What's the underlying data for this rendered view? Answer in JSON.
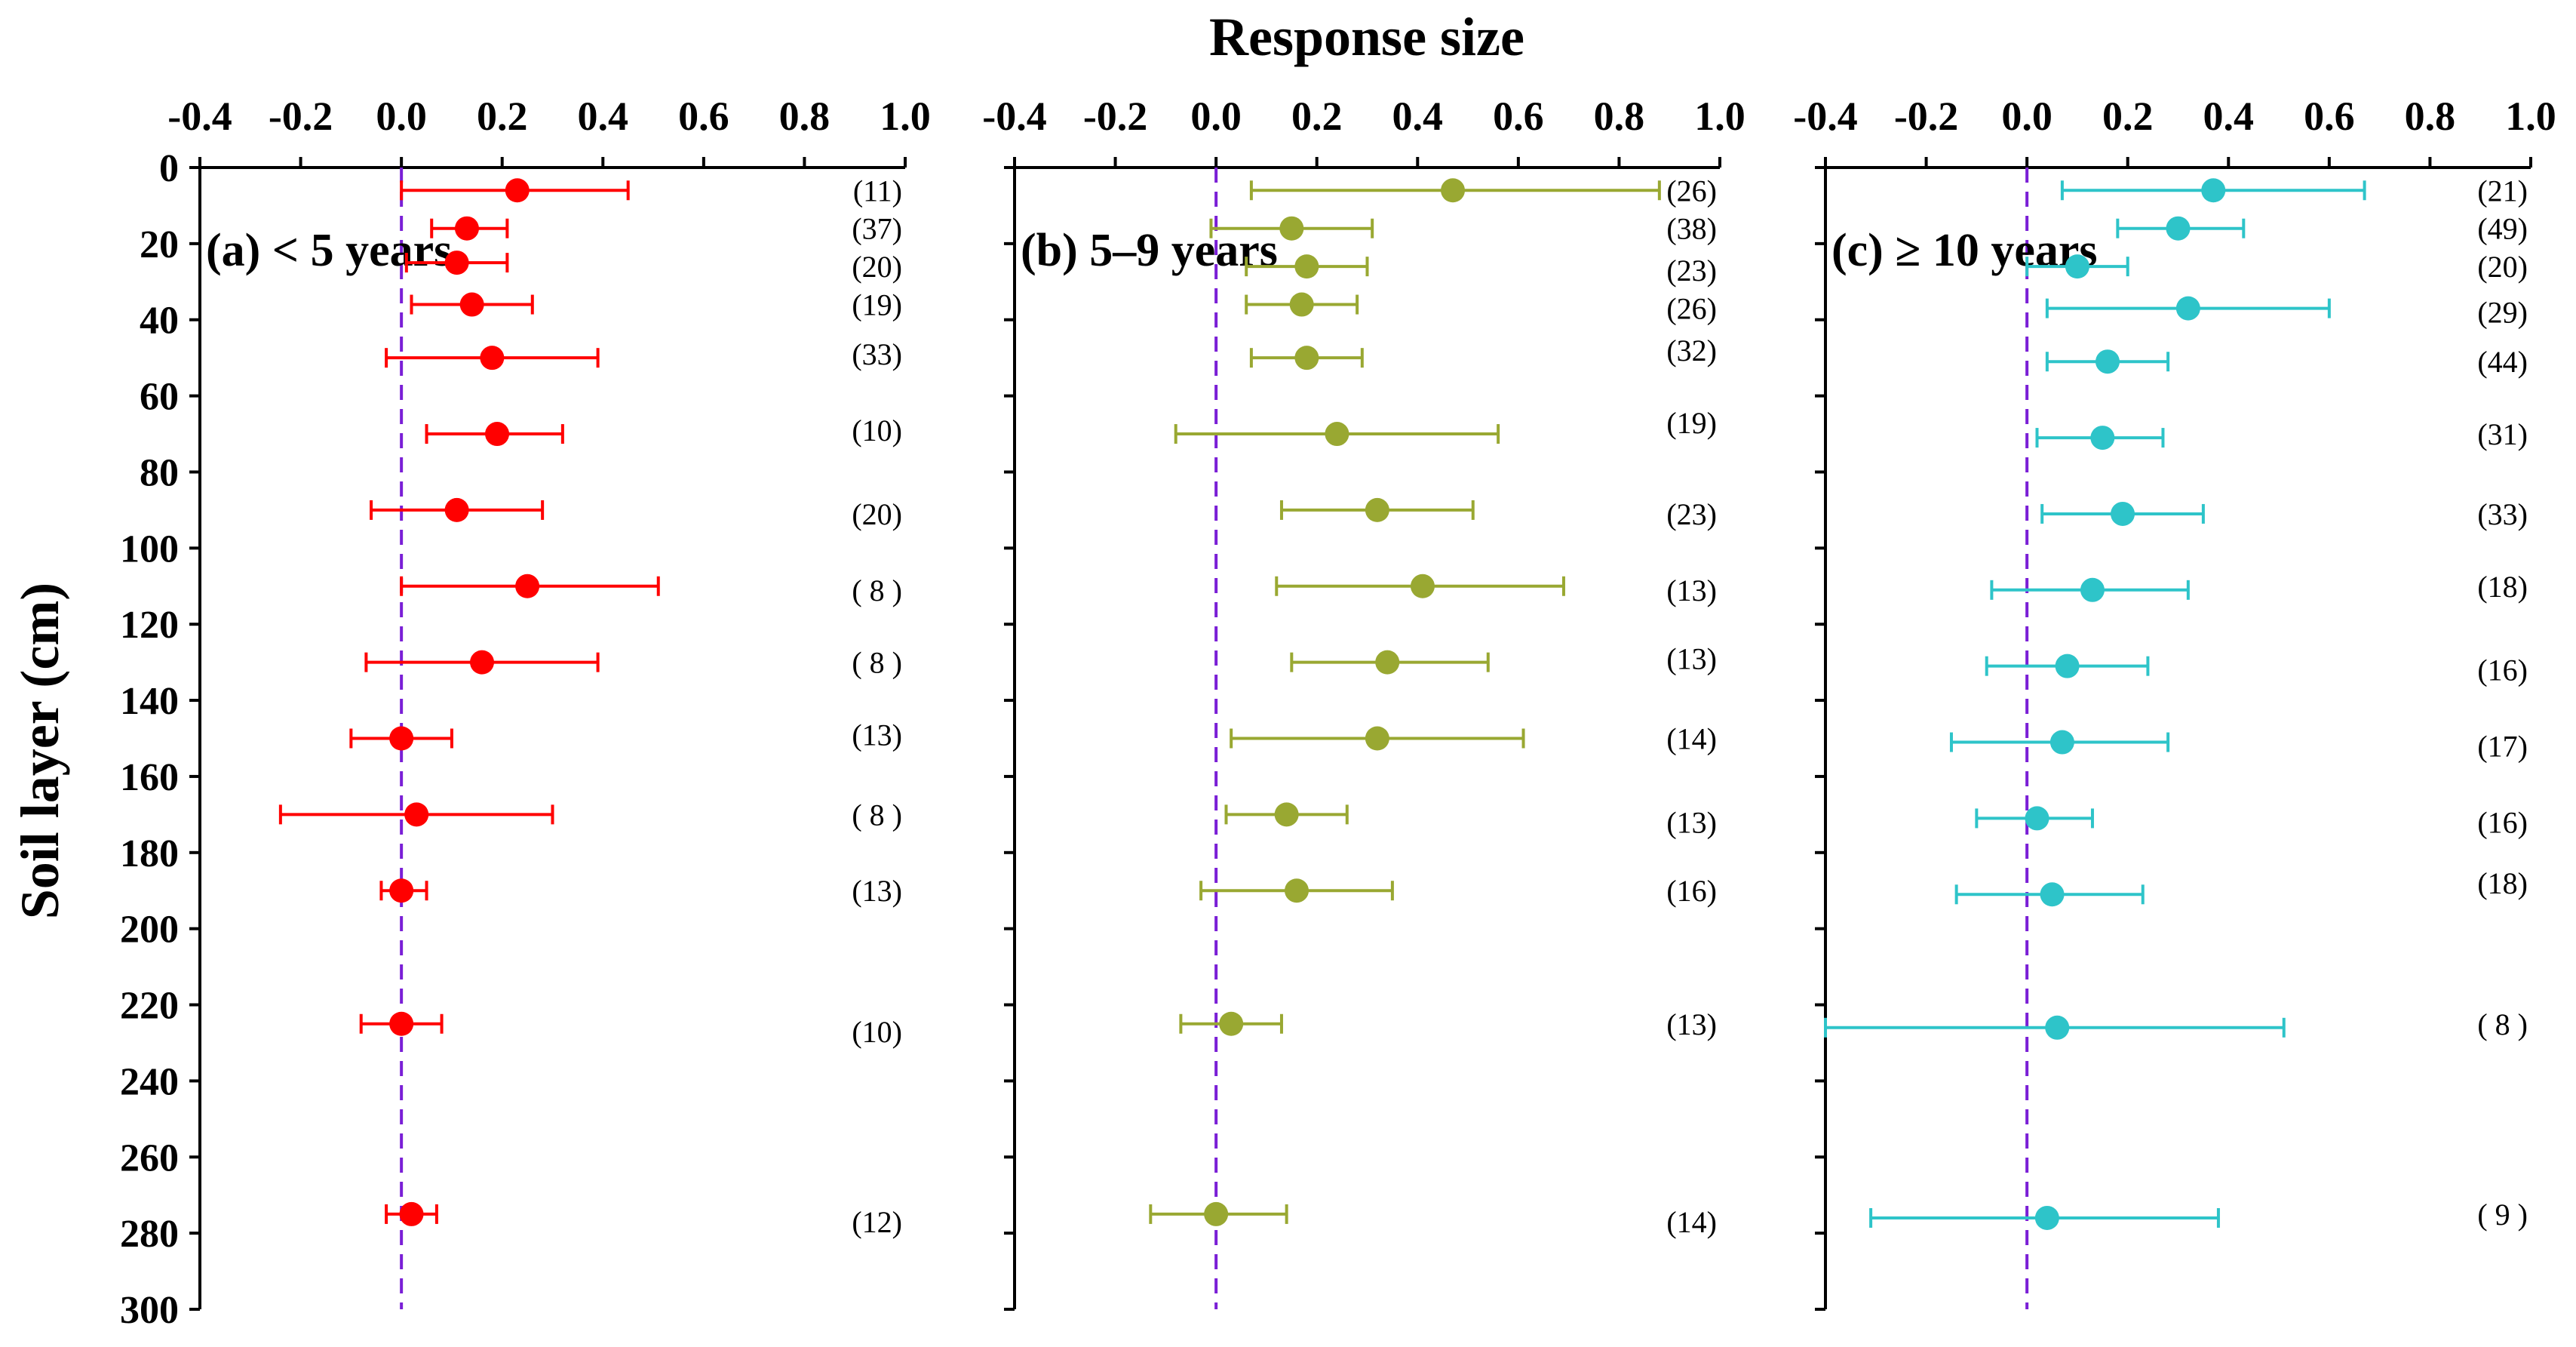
{
  "chart_data": {
    "type": "scatter",
    "title": "Response size",
    "ylabel": "Soil layer (cm)",
    "xlim": [
      -0.4,
      1.0
    ],
    "ylim": [
      0,
      300
    ],
    "xticks": [
      "-0.4",
      "-0.2",
      "0.0",
      "0.2",
      "0.4",
      "0.6",
      "0.8",
      "1.0"
    ],
    "yticks": [
      "0",
      "20",
      "40",
      "60",
      "80",
      "100",
      "120",
      "140",
      "160",
      "180",
      "200",
      "220",
      "240",
      "260",
      "280",
      "300"
    ],
    "reference_line_x": 0,
    "panels": [
      {
        "label": "(a) < 5 years",
        "color": "#ff0000",
        "points": [
          {
            "depth": 6,
            "mean": 0.23,
            "lo": 0.0,
            "hi": 0.45,
            "n": "(11)",
            "n_depth": 6
          },
          {
            "depth": 16,
            "mean": 0.13,
            "lo": 0.06,
            "hi": 0.21,
            "n": "(37)",
            "n_depth": 16
          },
          {
            "depth": 25,
            "mean": 0.11,
            "lo": 0.01,
            "hi": 0.21,
            "n": "(20)",
            "n_depth": 26
          },
          {
            "depth": 36,
            "mean": 0.14,
            "lo": 0.02,
            "hi": 0.26,
            "n": "(19)",
            "n_depth": 36
          },
          {
            "depth": 50,
            "mean": 0.18,
            "lo": -0.03,
            "hi": 0.39,
            "n": "(33)",
            "n_depth": 49
          },
          {
            "depth": 70,
            "mean": 0.19,
            "lo": 0.05,
            "hi": 0.32,
            "n": "(10)",
            "n_depth": 69
          },
          {
            "depth": 90,
            "mean": 0.11,
            "lo": -0.06,
            "hi": 0.28,
            "n": "(20)",
            "n_depth": 91
          },
          {
            "depth": 110,
            "mean": 0.25,
            "lo": 0.0,
            "hi": 0.51,
            "n": "( 8 )",
            "n_depth": 111
          },
          {
            "depth": 130,
            "mean": 0.16,
            "lo": -0.07,
            "hi": 0.39,
            "n": "( 8 )",
            "n_depth": 130
          },
          {
            "depth": 150,
            "mean": 0.0,
            "lo": -0.1,
            "hi": 0.1,
            "n": "(13)",
            "n_depth": 149
          },
          {
            "depth": 170,
            "mean": 0.03,
            "lo": -0.24,
            "hi": 0.3,
            "n": "( 8 )",
            "n_depth": 170
          },
          {
            "depth": 190,
            "mean": 0.0,
            "lo": -0.04,
            "hi": 0.05,
            "n": "(13)",
            "n_depth": 190
          },
          {
            "depth": 225,
            "mean": 0.0,
            "lo": -0.08,
            "hi": 0.08,
            "n": "(10)",
            "n_depth": 227
          },
          {
            "depth": 275,
            "mean": 0.02,
            "lo": -0.03,
            "hi": 0.07,
            "n": "(12)",
            "n_depth": 277
          }
        ]
      },
      {
        "label": "(b) 5–9 years",
        "color": "#99a832",
        "points": [
          {
            "depth": 6,
            "mean": 0.47,
            "lo": 0.07,
            "hi": 0.88,
            "n": "(26)",
            "n_depth": 6
          },
          {
            "depth": 16,
            "mean": 0.15,
            "lo": -0.01,
            "hi": 0.31,
            "n": "(38)",
            "n_depth": 16
          },
          {
            "depth": 26,
            "mean": 0.18,
            "lo": 0.06,
            "hi": 0.3,
            "n": "(23)",
            "n_depth": 27
          },
          {
            "depth": 36,
            "mean": 0.17,
            "lo": 0.06,
            "hi": 0.28,
            "n": "(26)",
            "n_depth": 37
          },
          {
            "depth": 50,
            "mean": 0.18,
            "lo": 0.07,
            "hi": 0.29,
            "n": "(32)",
            "n_depth": 48
          },
          {
            "depth": 70,
            "mean": 0.24,
            "lo": -0.08,
            "hi": 0.56,
            "n": "(19)",
            "n_depth": 67
          },
          {
            "depth": 90,
            "mean": 0.32,
            "lo": 0.13,
            "hi": 0.51,
            "n": "(23)",
            "n_depth": 91
          },
          {
            "depth": 110,
            "mean": 0.41,
            "lo": 0.12,
            "hi": 0.69,
            "n": "(13)",
            "n_depth": 111
          },
          {
            "depth": 130,
            "mean": 0.34,
            "lo": 0.15,
            "hi": 0.54,
            "n": "(13)",
            "n_depth": 129
          },
          {
            "depth": 150,
            "mean": 0.32,
            "lo": 0.03,
            "hi": 0.61,
            "n": "(14)",
            "n_depth": 150
          },
          {
            "depth": 170,
            "mean": 0.14,
            "lo": 0.02,
            "hi": 0.26,
            "n": "(13)",
            "n_depth": 172
          },
          {
            "depth": 190,
            "mean": 0.16,
            "lo": -0.03,
            "hi": 0.35,
            "n": "(16)",
            "n_depth": 190
          },
          {
            "depth": 225,
            "mean": 0.03,
            "lo": -0.07,
            "hi": 0.13,
            "n": "(13)",
            "n_depth": 225
          },
          {
            "depth": 275,
            "mean": 0.0,
            "lo": -0.13,
            "hi": 0.14,
            "n": "(14)",
            "n_depth": 277
          }
        ]
      },
      {
        "label": "(c) ≥ 10 years",
        "color": "#2ec4c9",
        "points": [
          {
            "depth": 6,
            "mean": 0.37,
            "lo": 0.07,
            "hi": 0.67,
            "n": "(21)",
            "n_depth": 6
          },
          {
            "depth": 16,
            "mean": 0.3,
            "lo": 0.18,
            "hi": 0.43,
            "n": "(49)",
            "n_depth": 16
          },
          {
            "depth": 26,
            "mean": 0.1,
            "lo": 0.0,
            "hi": 0.2,
            "n": "(20)",
            "n_depth": 26
          },
          {
            "depth": 37,
            "mean": 0.32,
            "lo": 0.04,
            "hi": 0.6,
            "n": "(29)",
            "n_depth": 38
          },
          {
            "depth": 51,
            "mean": 0.16,
            "lo": 0.04,
            "hi": 0.28,
            "n": "(44)",
            "n_depth": 51
          },
          {
            "depth": 71,
            "mean": 0.15,
            "lo": 0.02,
            "hi": 0.27,
            "n": "(31)",
            "n_depth": 70
          },
          {
            "depth": 91,
            "mean": 0.19,
            "lo": 0.03,
            "hi": 0.35,
            "n": "(33)",
            "n_depth": 91
          },
          {
            "depth": 111,
            "mean": 0.13,
            "lo": -0.07,
            "hi": 0.32,
            "n": "(18)",
            "n_depth": 110
          },
          {
            "depth": 131,
            "mean": 0.08,
            "lo": -0.08,
            "hi": 0.24,
            "n": "(16)",
            "n_depth": 132
          },
          {
            "depth": 151,
            "mean": 0.07,
            "lo": -0.15,
            "hi": 0.28,
            "n": "(17)",
            "n_depth": 152
          },
          {
            "depth": 171,
            "mean": 0.02,
            "lo": -0.1,
            "hi": 0.13,
            "n": "(16)",
            "n_depth": 172
          },
          {
            "depth": 191,
            "mean": 0.05,
            "lo": -0.14,
            "hi": 0.23,
            "n": "(18)",
            "n_depth": 188
          },
          {
            "depth": 226,
            "mean": 0.06,
            "lo": -0.4,
            "hi": 0.51,
            "n": "( 8 )",
            "n_depth": 225
          },
          {
            "depth": 276,
            "mean": 0.04,
            "lo": -0.31,
            "hi": 0.38,
            "n": "( 9 )",
            "n_depth": 275
          }
        ]
      }
    ]
  }
}
